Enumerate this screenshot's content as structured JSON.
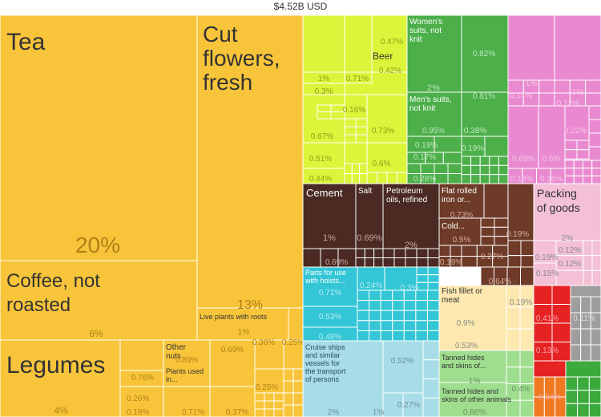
{
  "chart_data": {
    "type": "treemap",
    "title": "$4.52B USD",
    "colors": {
      "agriculture": "#f8c53a",
      "produce": "#dcf53a",
      "textiles": "#4caf4a",
      "minerals": "#4a2a22",
      "metals": "#6e3b28",
      "mixed": "#e98ad0",
      "plastics": "#f3c0d6",
      "machinery": "#34c6d6",
      "transport": "#a7dce8",
      "animal": "#fde9b0",
      "hides": "#9fde8f",
      "chemicals": "#e62222",
      "gray": "#9e9e9e",
      "green": "#3caa3c"
    },
    "items": [
      {
        "name": "Tea",
        "share": "20%",
        "group": "agriculture"
      },
      {
        "name": "Cut flowers, fresh",
        "share": "13%",
        "group": "agriculture"
      },
      {
        "name": "Live plants with roots",
        "share": "1%",
        "group": "agriculture"
      },
      {
        "name": "Coffee, not roasted",
        "share": "6%",
        "group": "agriculture"
      },
      {
        "name": "Legumes",
        "share": "4%",
        "group": "agriculture"
      },
      {
        "name": "Other nuts",
        "share": "0.89%",
        "group": "agriculture"
      },
      {
        "name": "Plants used in...",
        "share": "0.71%",
        "group": "agriculture"
      },
      {
        "name": "Beer",
        "share": "0.42%",
        "group": "produce"
      },
      {
        "name": "Women's suits, not knit",
        "share": "2%",
        "group": "textiles"
      },
      {
        "name": "Men's suits, not knit",
        "share": "0.95%",
        "group": "textiles"
      },
      {
        "name": "Cement",
        "share": "1%",
        "group": "minerals"
      },
      {
        "name": "Salt",
        "share": "0.69%",
        "group": "minerals"
      },
      {
        "name": "Petroleum oils, refined",
        "share": "2%",
        "group": "minerals"
      },
      {
        "name": "Flat rolled iron or...",
        "share": "0.73%",
        "group": "metals"
      },
      {
        "name": "Cold...",
        "share": "0.5%",
        "group": "metals"
      },
      {
        "name": "Packing of goods",
        "share": "2%",
        "group": "plastics"
      },
      {
        "name": "Parts for use with hoists...",
        "share": "0.71%",
        "group": "machinery"
      },
      {
        "name": "Cruise ships and similar vessels for the transport of persons",
        "share": "2%",
        "group": "transport"
      },
      {
        "name": "Fish fillet or meat",
        "share": "0.9%",
        "group": "animal"
      },
      {
        "name": "Tanned hides and skins of...",
        "share": "1%",
        "group": "hides"
      },
      {
        "name": "Tanned hides and skins of other animals",
        "share": "0.86%",
        "group": "hides"
      }
    ],
    "other_values": [
      "0.76%",
      "0.26%",
      "0.19%",
      "0.69%",
      "0.37%",
      "0.36%",
      "0.25%",
      "0.25%",
      "0.47%",
      "1%",
      "0.71%",
      "0.3%",
      "0.16%",
      "0.73%",
      "0.67%",
      "0.51%",
      "0.6%",
      "0.44%",
      "0.82%",
      "0.81%",
      "0.38%",
      "0.19%",
      "0.19%",
      "0.17%",
      "0.28%",
      "1%",
      "1%",
      "0.14%",
      "0.12%",
      "0.22%",
      "0.69%",
      "0.6%",
      "0.18%",
      "0.16%",
      "0.69%",
      "0.19%",
      "0.19%",
      "0.27%",
      "0.64%",
      "0.19%",
      "0.12%",
      "0.12%",
      "0.15%",
      "0.24%",
      "0.3%",
      "0.53%",
      "0.48%",
      "0.52%",
      "1%",
      "0.27%",
      "0.19%",
      "0.53%",
      "0.4%",
      "0.41%",
      "0.13%",
      "0.11%",
      "0.34%"
    ]
  }
}
